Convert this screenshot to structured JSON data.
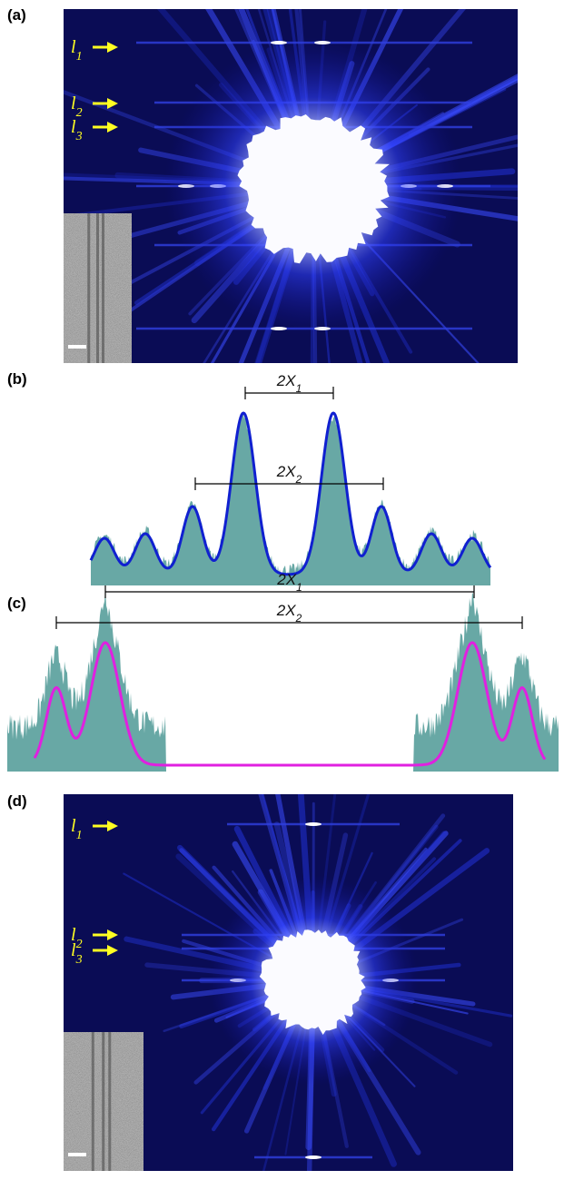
{
  "panels": [
    {
      "label": "(a)",
      "arrows": [
        {
          "text": "l",
          "sub": "1"
        },
        {
          "text": "l",
          "sub": "2"
        },
        {
          "text": "l",
          "sub": "3"
        }
      ]
    },
    {
      "label": "(b)",
      "measures": [
        {
          "text": "2X",
          "sub": "1"
        },
        {
          "text": "2X",
          "sub": "2"
        }
      ]
    },
    {
      "label": "(c)",
      "measures": [
        {
          "text": "2X",
          "sub": "1"
        },
        {
          "text": "2X",
          "sub": "2"
        }
      ]
    },
    {
      "label": "(d)",
      "arrows": [
        {
          "text": "l",
          "sub": "1"
        },
        {
          "text": "l",
          "sub": "2"
        },
        {
          "text": "l",
          "sub": "3"
        }
      ]
    }
  ]
}
